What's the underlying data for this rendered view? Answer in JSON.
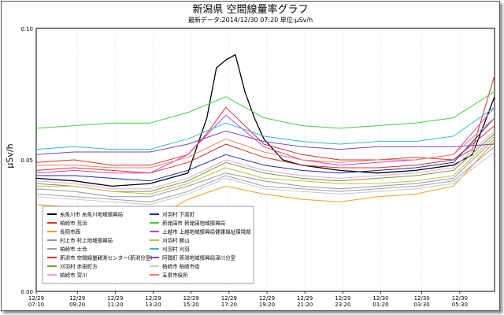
{
  "chart_data": {
    "type": "line",
    "title": "新潟県 空間線量率グラフ",
    "subtitle": "最新データ:2014/12/30 07:20 単位:μSv/h",
    "ylabel": "μSv/h",
    "xlabel": "",
    "ylim": [
      0.0,
      0.1
    ],
    "yticks": [
      "0.00",
      "0.05",
      "0.10"
    ],
    "ytick_values": [
      0.0,
      0.05,
      0.1
    ],
    "x_tick_labels": [
      [
        "12/29",
        "07:10"
      ],
      [
        "12/29",
        "09:20"
      ],
      [
        "12/29",
        "11:20"
      ],
      [
        "12/29",
        "13:20"
      ],
      [
        "12/29",
        "15:20"
      ],
      [
        "12/29",
        "17:20"
      ],
      [
        "12/29",
        "19:20"
      ],
      [
        "12/29",
        "21:20"
      ],
      [
        "12/29",
        "23:20"
      ],
      [
        "12/30",
        "01:20"
      ],
      [
        "12/30",
        "03:30"
      ],
      [
        "12/30",
        "05:30"
      ]
    ],
    "x_hours": [
      0,
      2.1667,
      4.1667,
      6.1667,
      8.1667,
      10.1667,
      12.1667,
      14.1667,
      16.1667,
      18.1667,
      20.3333,
      22.3333
    ],
    "x_max_hours": 24.1667,
    "grid": true,
    "legend_placement": "lower-left",
    "series": [
      {
        "name": "糸魚川市 糸魚川地域振興局",
        "color": "#000000",
        "x": [
          0,
          2,
          4,
          6,
          8,
          9,
          9.5,
          10,
          10.5,
          11,
          11.5,
          12,
          13,
          14,
          16,
          18,
          20,
          21,
          22,
          23,
          24.1667
        ],
        "y": [
          0.043,
          0.042,
          0.04,
          0.041,
          0.045,
          0.066,
          0.085,
          0.088,
          0.09,
          0.076,
          0.066,
          0.058,
          0.05,
          0.048,
          0.046,
          0.045,
          0.046,
          0.047,
          0.048,
          0.052,
          0.074
        ]
      },
      {
        "name": "柏崎市 荒浜",
        "color": "#e0302a",
        "x": [
          0,
          2,
          4,
          6,
          8,
          9,
          10,
          11,
          12,
          14,
          16,
          18,
          20,
          22,
          23,
          24.1667
        ],
        "y": [
          0.049,
          0.05,
          0.048,
          0.048,
          0.052,
          0.06,
          0.07,
          0.063,
          0.056,
          0.052,
          0.05,
          0.05,
          0.051,
          0.05,
          0.054,
          0.082
        ]
      },
      {
        "name": "長岡市西",
        "color": "#f2a020",
        "x": [
          0,
          2,
          4,
          6,
          8,
          10,
          12,
          14,
          16,
          18,
          20,
          22,
          24.1667
        ],
        "y": [
          0.033,
          0.032,
          0.028,
          0.027,
          0.035,
          0.04,
          0.037,
          0.035,
          0.034,
          0.036,
          0.037,
          0.04,
          0.057
        ]
      },
      {
        "name": "村上市 村上地域振興局",
        "color": "#9090c8",
        "x": [
          0,
          2,
          4,
          6,
          8,
          10,
          12,
          14,
          16,
          18,
          20,
          22,
          24.1667
        ],
        "y": [
          0.039,
          0.038,
          0.036,
          0.036,
          0.04,
          0.045,
          0.042,
          0.04,
          0.039,
          0.04,
          0.041,
          0.043,
          0.058
        ]
      },
      {
        "name": "柏崎市 土合",
        "color": "#a0a0a0",
        "x": [
          0,
          2,
          4,
          6,
          8,
          10,
          12,
          14,
          16,
          18,
          20,
          22,
          24.1667
        ],
        "y": [
          0.037,
          0.036,
          0.035,
          0.034,
          0.038,
          0.044,
          0.04,
          0.039,
          0.038,
          0.039,
          0.04,
          0.042,
          0.055
        ]
      },
      {
        "name": "新潟市 空間線量観測センター(新潟分室)",
        "color": "#d83030",
        "x": [
          0,
          2,
          4,
          6,
          8,
          10,
          12,
          14,
          16,
          18,
          20,
          22,
          24.1667
        ],
        "y": [
          0.046,
          0.047,
          0.046,
          0.045,
          0.049,
          0.056,
          0.051,
          0.048,
          0.047,
          0.047,
          0.048,
          0.05,
          0.063
        ]
      },
      {
        "name": "刈羽村 赤田町方",
        "color": "#70a030",
        "x": [
          0,
          2,
          4,
          6,
          8,
          10,
          12,
          14,
          16,
          18,
          20,
          22,
          24.1667
        ],
        "y": [
          0.041,
          0.04,
          0.038,
          0.038,
          0.042,
          0.049,
          0.045,
          0.043,
          0.042,
          0.043,
          0.044,
          0.046,
          0.06
        ]
      },
      {
        "name": "柏崎市 宮川",
        "color": "#e8a0e8",
        "x": [
          0,
          2,
          4,
          6,
          8,
          10,
          12,
          14,
          16,
          18,
          20,
          22,
          24.1667
        ],
        "y": [
          0.042,
          0.041,
          0.039,
          0.039,
          0.043,
          0.05,
          0.046,
          0.044,
          0.043,
          0.044,
          0.045,
          0.047,
          0.061
        ]
      },
      {
        "name": "刈羽村 下高町",
        "color": "#1a2aa0",
        "x": [
          0,
          2,
          4,
          6,
          8,
          10,
          12,
          14,
          16,
          18,
          20,
          22,
          24.1667
        ],
        "y": [
          0.044,
          0.044,
          0.043,
          0.042,
          0.046,
          0.052,
          0.048,
          0.046,
          0.045,
          0.046,
          0.047,
          0.049,
          0.066
        ]
      },
      {
        "name": "新発田市 新発田地域振興局",
        "color": "#40d040",
        "x": [
          0,
          2,
          4,
          6,
          8,
          10,
          12,
          14,
          16,
          18,
          20,
          22,
          24.1667
        ],
        "y": [
          0.062,
          0.063,
          0.064,
          0.064,
          0.068,
          0.074,
          0.066,
          0.063,
          0.062,
          0.063,
          0.064,
          0.066,
          0.076
        ]
      },
      {
        "name": "上越市 上越地域振興局健康福祉環境部",
        "color": "#d040d0",
        "x": [
          0,
          2,
          4,
          6,
          8,
          10,
          12,
          14,
          16,
          18,
          20,
          22,
          24.1667
        ],
        "y": [
          0.045,
          0.046,
          0.045,
          0.045,
          0.052,
          0.067,
          0.055,
          0.05,
          0.048,
          0.049,
          0.05,
          0.052,
          0.07
        ]
      },
      {
        "name": "刈羽村 勝山",
        "color": "#c0c040",
        "x": [
          0,
          2,
          4,
          6,
          8,
          10,
          12,
          14,
          16,
          18,
          20,
          22,
          24.1667
        ],
        "y": [
          0.04,
          0.04,
          0.038,
          0.037,
          0.041,
          0.047,
          0.043,
          0.042,
          0.041,
          0.041,
          0.042,
          0.044,
          0.059
        ]
      },
      {
        "name": "刈羽村 刈羽",
        "color": "#30c0c0",
        "x": [
          0,
          2,
          4,
          6,
          8,
          10,
          12,
          14,
          16,
          18,
          20,
          22,
          24.1667
        ],
        "y": [
          0.054,
          0.055,
          0.054,
          0.054,
          0.058,
          0.064,
          0.059,
          0.057,
          0.056,
          0.057,
          0.057,
          0.059,
          0.07
        ]
      },
      {
        "name": "阿賀町 新潟地域振興局津川分室",
        "color": "#8040c0",
        "x": [
          0,
          2,
          4,
          6,
          8,
          10,
          12,
          14,
          16,
          18,
          20,
          22,
          24.1667
        ],
        "y": [
          0.052,
          0.053,
          0.053,
          0.053,
          0.056,
          0.061,
          0.057,
          0.055,
          0.054,
          0.055,
          0.055,
          0.055,
          0.056
        ]
      },
      {
        "name": "柏崎市 柏崎市街",
        "color": "#c8c8c8",
        "x": [
          0,
          2,
          4,
          6,
          8,
          10,
          12,
          14,
          16,
          18,
          20,
          22,
          24.1667
        ],
        "y": [
          0.036,
          0.035,
          0.034,
          0.033,
          0.037,
          0.043,
          0.039,
          0.038,
          0.037,
          0.038,
          0.039,
          0.041,
          0.053
        ]
      },
      {
        "name": "五泉市役所",
        "color": "#f08060",
        "x": [
          0,
          2,
          4,
          6,
          8,
          10,
          12,
          14,
          16,
          18,
          20,
          22,
          24.1667
        ],
        "y": [
          0.048,
          0.048,
          0.047,
          0.047,
          0.051,
          0.058,
          0.053,
          0.05,
          0.049,
          0.05,
          0.05,
          0.052,
          0.066
        ]
      }
    ]
  }
}
